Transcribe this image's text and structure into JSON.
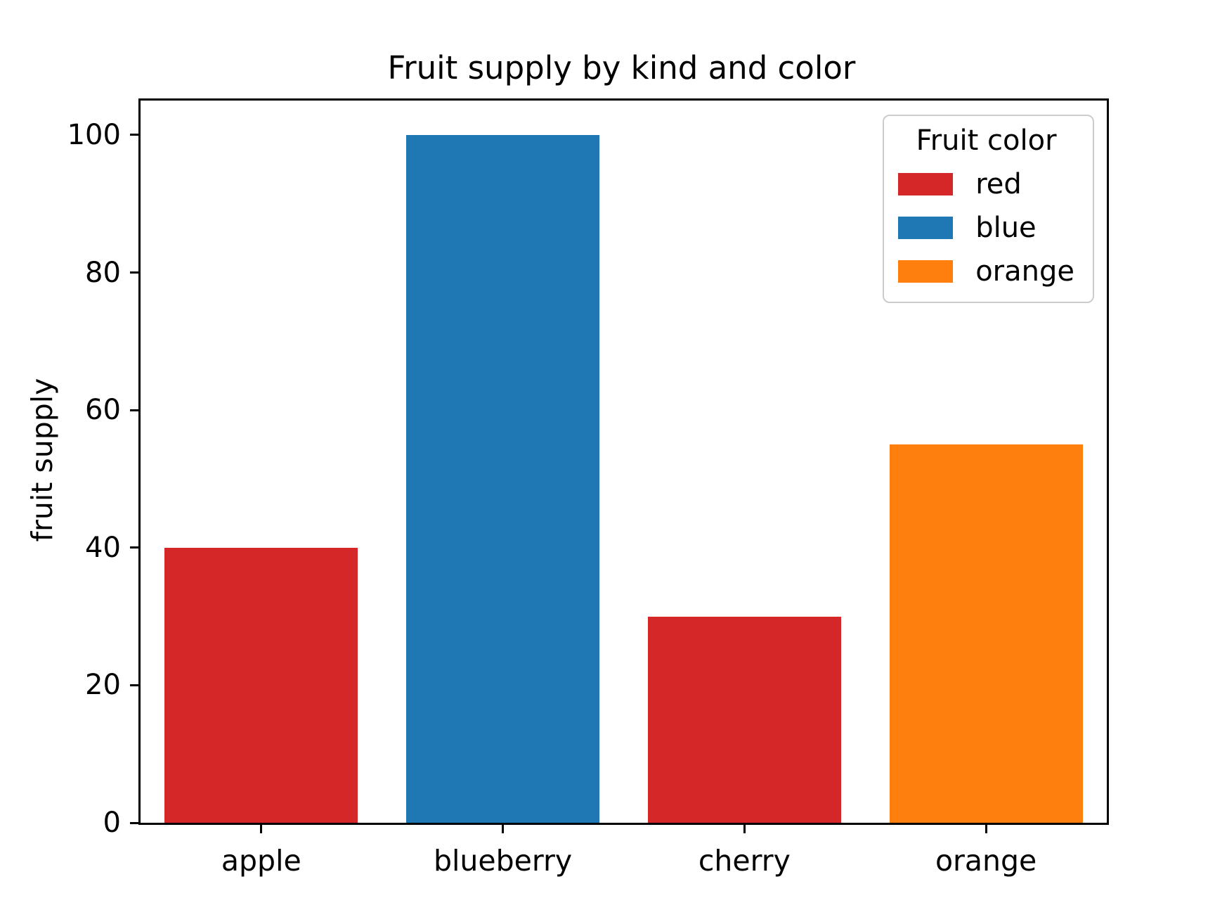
{
  "chart_data": {
    "type": "bar",
    "title": "Fruit supply by kind and color",
    "xlabel": "",
    "ylabel": "fruit supply",
    "categories": [
      "apple",
      "blueberry",
      "cherry",
      "orange"
    ],
    "values": [
      40,
      100,
      30,
      55
    ],
    "bar_colors": [
      "#d62728",
      "#1f77b4",
      "#d62728",
      "#ff7f0e"
    ],
    "bar_color_names": [
      "red",
      "blue",
      "red",
      "orange"
    ],
    "ylim": [
      0,
      105
    ],
    "yticks": [
      0,
      20,
      40,
      60,
      80,
      100
    ],
    "grid": false,
    "legend": {
      "title": "Fruit color",
      "position": "upper right",
      "entries": [
        {
          "label": "red",
          "color": "#d62728"
        },
        {
          "label": "blue",
          "color": "#1f77b4"
        },
        {
          "label": "orange",
          "color": "#ff7f0e"
        }
      ]
    }
  }
}
